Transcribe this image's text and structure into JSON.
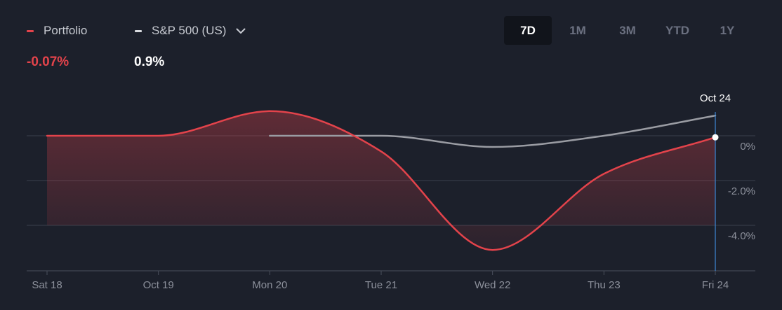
{
  "legend": {
    "portfolio_label": "Portfolio",
    "benchmark_label": "S&P 500 (US)",
    "portfolio_value": "-0.07%",
    "benchmark_value": "0.9%",
    "dropdown_icon": "chevron-down-icon"
  },
  "range_tabs": [
    {
      "label": "7D",
      "active": true
    },
    {
      "label": "1M",
      "active": false
    },
    {
      "label": "3M",
      "active": false
    },
    {
      "label": "YTD",
      "active": false
    },
    {
      "label": "1Y",
      "active": false
    }
  ],
  "colors": {
    "background": "#1c202b",
    "portfolio": "#e3434b",
    "benchmark": "#9a9ca3",
    "grid": "#3a3f4c",
    "cursor": "#3d87d6",
    "tab_active_bg": "#11141b"
  },
  "chart_data": {
    "type": "line",
    "x": [
      "Sat 18",
      "Oct 19",
      "Mon 20",
      "Tue 21",
      "Wed 22",
      "Thu 23",
      "Fri 24"
    ],
    "ylim": [
      -6.0,
      1.0
    ],
    "yticks": [
      "0%",
      "-2.0%",
      "-4.0%"
    ],
    "ytick_values": [
      0,
      -2,
      -4
    ],
    "grid": true,
    "series": [
      {
        "name": "Portfolio",
        "color": "#e3434b",
        "fill": true,
        "points": [
          {
            "x": "Sat 18",
            "y": 0.0
          },
          {
            "x": "Oct 19",
            "y": 0.0
          },
          {
            "x": "Mon 20",
            "y": 1.1
          },
          {
            "x": "Tue 21",
            "y": -0.7
          },
          {
            "x": "Wed 22",
            "y": -5.1
          },
          {
            "x": "Thu 23",
            "y": -1.7
          },
          {
            "x": "Fri 24",
            "y": -0.07
          }
        ]
      },
      {
        "name": "S&P 500 (US)",
        "color": "#9a9ca3",
        "fill": false,
        "points": [
          {
            "x": "Mon 20",
            "y": 0.0
          },
          {
            "x": "Tue 21",
            "y": 0.0
          },
          {
            "x": "Wed 22",
            "y": -0.5
          },
          {
            "x": "Thu 23",
            "y": 0.0
          },
          {
            "x": "Fri 24",
            "y": 0.9
          }
        ]
      }
    ],
    "tooltip": {
      "x": "Fri 24",
      "label": "Oct 24"
    }
  }
}
